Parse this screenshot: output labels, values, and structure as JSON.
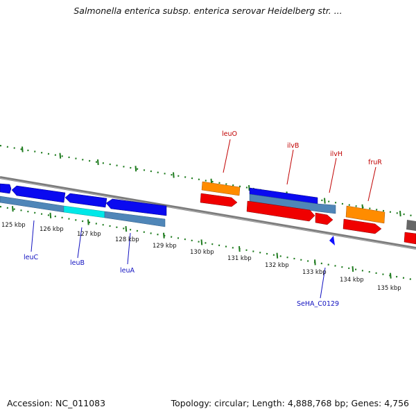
{
  "title": "Salmonella enterica subsp. enterica serovar Heidelberg str. ...",
  "footer": {
    "accession": "Accession: NC_011083",
    "summary": "Topology: circular; Length: 4,888,768 bp; Genes: 4,756"
  },
  "colors": {
    "backbone": "#8a8a8a",
    "tick": "#1e7b1e",
    "forward_label": "#c00000",
    "reverse_label": "#1010c0",
    "cds_blue": "#0a0af0",
    "cds_steel": "#4f86b8",
    "cds_orange": "#ff8c00",
    "cds_red": "#f00000",
    "cds_cyan": "#00e8e8",
    "gray_feature": "#666666"
  },
  "scale_labels": [
    "125 kbp",
    "126 kbp",
    "127 kbp",
    "128 kbp",
    "129 kbp",
    "130 kbp",
    "131 kbp",
    "132 kbp",
    "133 kbp",
    "134 kbp",
    "135 kbp"
  ],
  "gene_labels_forward": [
    "leuO",
    "ilvB",
    "ilvH",
    "fruR"
  ],
  "gene_labels_reverse": [
    "leuC",
    "leuB",
    "leuA",
    "SeHA_C0129"
  ]
}
